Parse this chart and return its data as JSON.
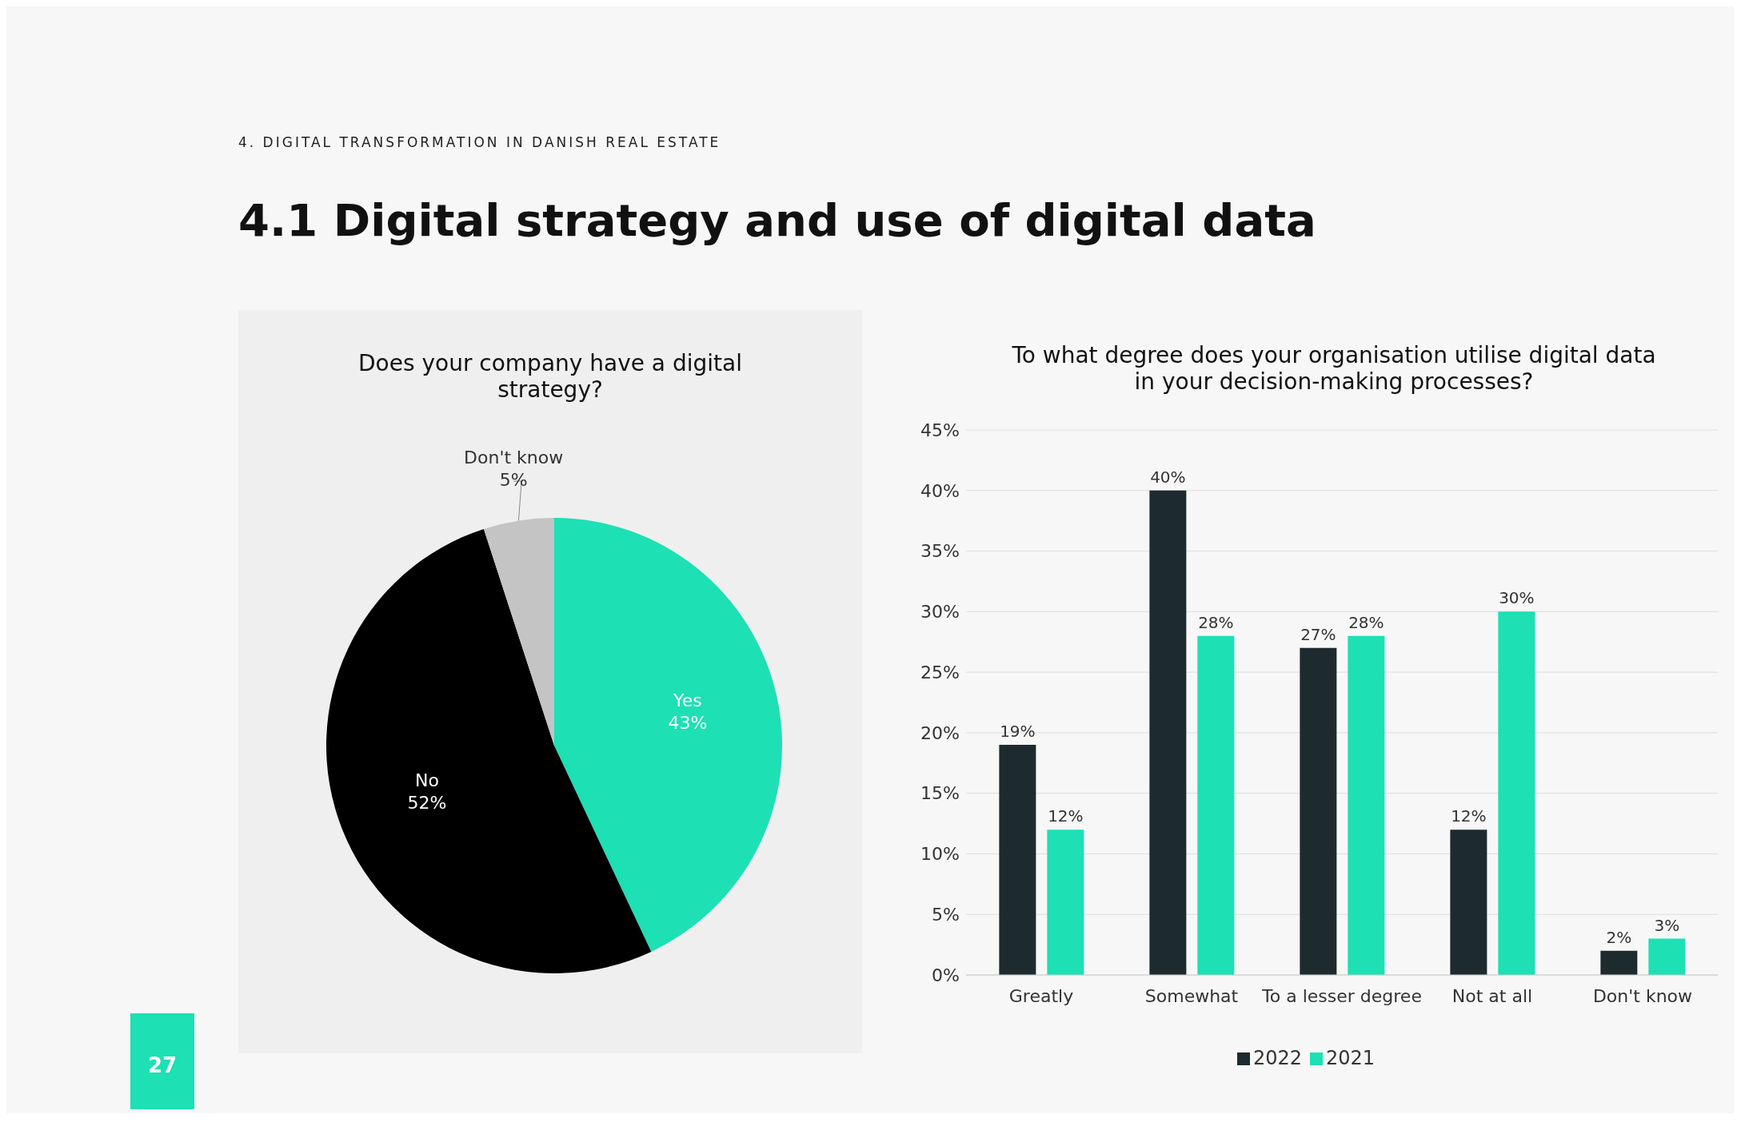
{
  "chart_data": [
    {
      "type": "pie",
      "title": "Does your company have a digital strategy?",
      "categories": [
        "Yes",
        "No",
        "Don't know"
      ],
      "values": [
        43,
        52,
        5
      ],
      "colors": [
        "#1de0b4",
        "#000000",
        "#c4c4c4"
      ],
      "value_labels": [
        "43%",
        "52%",
        "5%"
      ],
      "annotations": [
        "4. DIGITAL TRANSFORMATION IN DANISH REAL ESTATE",
        "4.1 Digital strategy and use of digital data",
        "27"
      ]
    },
    {
      "type": "bar",
      "title": "To what degree does your organisation utilise digital data in your decision-making processes?",
      "categories": [
        "Greatly",
        "Somewhat",
        "To a lesser degree",
        "Not at all",
        "Don't know"
      ],
      "series": [
        {
          "name": "2022",
          "color": "#1e2b2e",
          "values": [
            19,
            40,
            27,
            12,
            2
          ],
          "value_labels": [
            "19%",
            "40%",
            "27%",
            "12%",
            "2%"
          ]
        },
        {
          "name": "2021",
          "color": "#1de0b4",
          "values": [
            12,
            28,
            28,
            30,
            3
          ],
          "value_labels": [
            "12%",
            "28%",
            "28%",
            "30%",
            "3%"
          ]
        }
      ],
      "ylim": [
        0,
        45
      ],
      "yticks": [
        {
          "value": 0,
          "label": "0%"
        },
        {
          "value": 5,
          "label": "5%"
        },
        {
          "value": 10,
          "label": "10%"
        },
        {
          "value": 15,
          "label": "15%"
        },
        {
          "value": 20,
          "label": "20%"
        },
        {
          "value": 25,
          "label": "25%"
        },
        {
          "value": 30,
          "label": "30%"
        },
        {
          "value": 35,
          "label": "35%"
        },
        {
          "value": 40,
          "label": "40%"
        },
        {
          "value": 45,
          "label": "45%"
        }
      ],
      "grid": "y",
      "legend": "bottom"
    }
  ]
}
